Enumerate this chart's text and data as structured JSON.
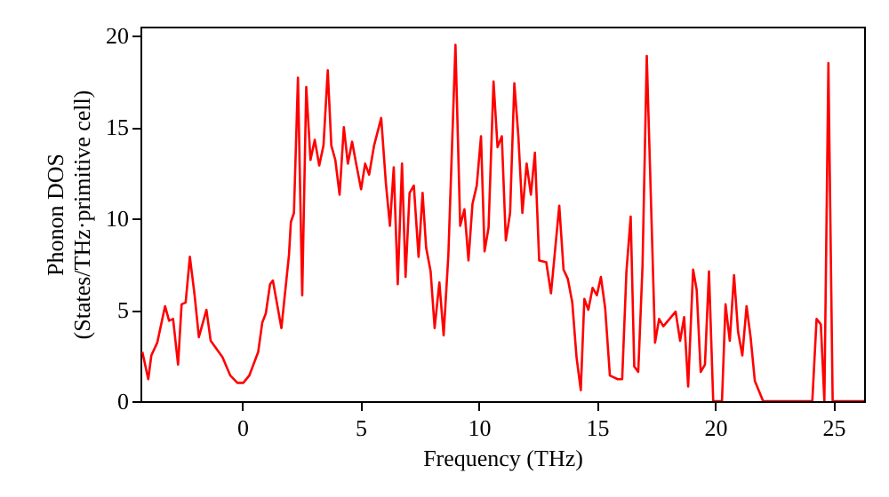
{
  "chart_data": {
    "type": "line",
    "xlabel": "Frequency (THz)",
    "ylabel": "Phonon DOS\n(States/THz·primitive cell)",
    "xlim": [
      -4.3,
      26.3
    ],
    "ylim": [
      0,
      20.5
    ],
    "xticks": [
      0,
      5,
      10,
      15,
      20,
      25
    ],
    "yticks": [
      0,
      5,
      10,
      15,
      20
    ],
    "grid": false,
    "marker": "none",
    "line_style": "solid",
    "series": [
      {
        "color": "#ff0000",
        "x": [
          -4.22,
          -3.97,
          -3.84,
          -3.59,
          -3.26,
          -3.09,
          -2.92,
          -2.71,
          -2.56,
          -2.39,
          -2.21,
          -2.01,
          -1.83,
          -1.51,
          -1.33,
          -0.83,
          -0.5,
          -0.2,
          0.05,
          0.3,
          0.68,
          0.85,
          1.0,
          1.18,
          1.3,
          1.66,
          1.98,
          2.06,
          2.19,
          2.36,
          2.54,
          2.71,
          2.89,
          3.07,
          3.26,
          3.44,
          3.62,
          3.77,
          3.94,
          4.12,
          4.3,
          4.47,
          4.65,
          4.82,
          5.03,
          5.2,
          5.37,
          5.58,
          5.88,
          6.08,
          6.25,
          6.41,
          6.58,
          6.76,
          6.91,
          7.08,
          7.26,
          7.46,
          7.63,
          7.78,
          7.97,
          8.14,
          8.34,
          8.52,
          8.72,
          9.02,
          9.22,
          9.4,
          9.57,
          9.74,
          9.92,
          10.1,
          10.25,
          10.42,
          10.63,
          10.8,
          10.98,
          11.15,
          11.33,
          11.51,
          11.68,
          11.85,
          12.03,
          12.21,
          12.38,
          12.56,
          12.86,
          13.06,
          13.41,
          13.59,
          13.77,
          13.96,
          14.14,
          14.32,
          14.47,
          14.64,
          14.82,
          15.0,
          15.17,
          15.35,
          15.55,
          15.88,
          16.07,
          16.25,
          16.43,
          16.58,
          16.75,
          16.93,
          17.11,
          17.28,
          17.46,
          17.63,
          17.81,
          18.01,
          18.33,
          18.52,
          18.69,
          18.86,
          19.07,
          19.22,
          19.39,
          19.57,
          19.74,
          19.92,
          20.1,
          20.29,
          20.44,
          20.62,
          20.8,
          20.97,
          21.15,
          21.33,
          21.5,
          21.68,
          22.03,
          24.11,
          24.29,
          24.47,
          24.62,
          24.79,
          24.97,
          26.3
        ],
        "values": [
          2.7,
          1.2,
          2.5,
          3.2,
          5.2,
          4.4,
          4.5,
          2.0,
          5.3,
          5.4,
          7.9,
          5.8,
          3.5,
          5.0,
          3.3,
          2.4,
          1.4,
          1.0,
          1.0,
          1.4,
          2.7,
          4.3,
          4.8,
          6.4,
          6.6,
          4.0,
          8.0,
          9.8,
          10.3,
          17.7,
          5.8,
          17.2,
          13.2,
          14.3,
          12.9,
          14.0,
          18.1,
          14.0,
          13.2,
          11.3,
          15.0,
          13.0,
          14.2,
          13.0,
          11.6,
          13.0,
          12.4,
          14.0,
          15.5,
          11.9,
          9.6,
          12.8,
          6.4,
          13.0,
          6.8,
          11.4,
          11.8,
          7.9,
          11.4,
          8.4,
          7.1,
          4.0,
          6.5,
          3.6,
          8.0,
          19.5,
          9.6,
          10.5,
          7.7,
          10.8,
          11.8,
          14.5,
          8.2,
          9.5,
          17.5,
          13.9,
          14.5,
          8.8,
          10.3,
          17.4,
          14.5,
          10.3,
          13.0,
          11.3,
          13.6,
          7.7,
          7.6,
          5.9,
          10.7,
          7.2,
          6.7,
          5.4,
          2.4,
          0.6,
          5.6,
          5.0,
          6.2,
          5.8,
          6.8,
          5.1,
          1.4,
          1.2,
          1.2,
          7.1,
          10.1,
          1.9,
          1.6,
          7.4,
          18.9,
          11.3,
          3.2,
          4.5,
          4.1,
          4.4,
          4.9,
          3.3,
          4.6,
          0.8,
          7.2,
          6.1,
          1.6,
          2.0,
          7.1,
          0,
          0,
          0,
          5.3,
          3.3,
          6.9,
          3.8,
          2.5,
          5.2,
          3.5,
          1.1,
          0,
          0,
          4.5,
          4.2,
          0,
          18.5,
          0,
          0
        ]
      }
    ]
  }
}
